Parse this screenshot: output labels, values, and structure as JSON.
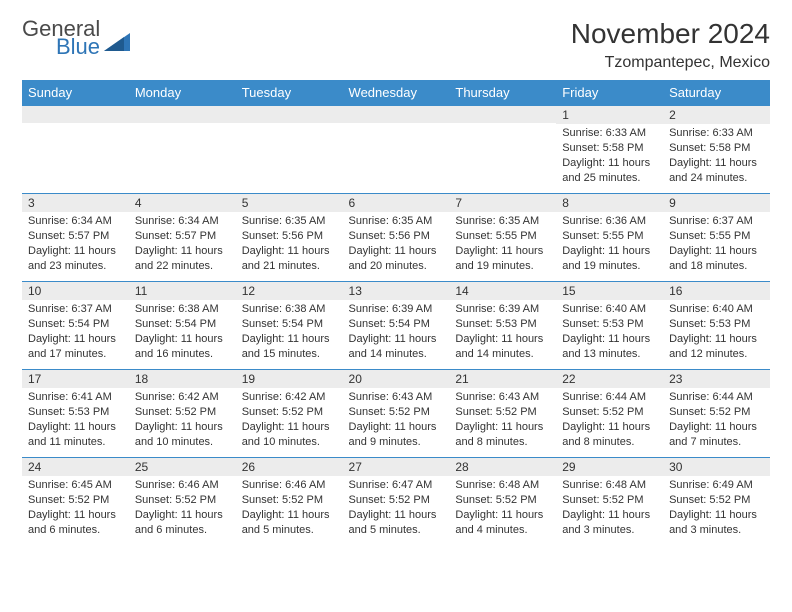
{
  "logo": {
    "word1": "General",
    "word2": "Blue"
  },
  "title": "November 2024",
  "location": "Tzompantepec, Mexico",
  "colors": {
    "header_bg": "#3b8bc9",
    "header_text": "#ffffff",
    "daynum_bg": "#ececec",
    "border": "#3b8bc9",
    "text": "#333333",
    "logo_gray": "#4a4a4a",
    "logo_blue": "#2e75b6"
  },
  "weekdays": [
    "Sunday",
    "Monday",
    "Tuesday",
    "Wednesday",
    "Thursday",
    "Friday",
    "Saturday"
  ],
  "weeks": [
    [
      {
        "blank": true
      },
      {
        "blank": true
      },
      {
        "blank": true
      },
      {
        "blank": true
      },
      {
        "blank": true
      },
      {
        "n": "1",
        "sunrise": "6:33 AM",
        "sunset": "5:58 PM",
        "daylight": "11 hours and 25 minutes."
      },
      {
        "n": "2",
        "sunrise": "6:33 AM",
        "sunset": "5:58 PM",
        "daylight": "11 hours and 24 minutes."
      }
    ],
    [
      {
        "n": "3",
        "sunrise": "6:34 AM",
        "sunset": "5:57 PM",
        "daylight": "11 hours and 23 minutes."
      },
      {
        "n": "4",
        "sunrise": "6:34 AM",
        "sunset": "5:57 PM",
        "daylight": "11 hours and 22 minutes."
      },
      {
        "n": "5",
        "sunrise": "6:35 AM",
        "sunset": "5:56 PM",
        "daylight": "11 hours and 21 minutes."
      },
      {
        "n": "6",
        "sunrise": "6:35 AM",
        "sunset": "5:56 PM",
        "daylight": "11 hours and 20 minutes."
      },
      {
        "n": "7",
        "sunrise": "6:35 AM",
        "sunset": "5:55 PM",
        "daylight": "11 hours and 19 minutes."
      },
      {
        "n": "8",
        "sunrise": "6:36 AM",
        "sunset": "5:55 PM",
        "daylight": "11 hours and 19 minutes."
      },
      {
        "n": "9",
        "sunrise": "6:37 AM",
        "sunset": "5:55 PM",
        "daylight": "11 hours and 18 minutes."
      }
    ],
    [
      {
        "n": "10",
        "sunrise": "6:37 AM",
        "sunset": "5:54 PM",
        "daylight": "11 hours and 17 minutes."
      },
      {
        "n": "11",
        "sunrise": "6:38 AM",
        "sunset": "5:54 PM",
        "daylight": "11 hours and 16 minutes."
      },
      {
        "n": "12",
        "sunrise": "6:38 AM",
        "sunset": "5:54 PM",
        "daylight": "11 hours and 15 minutes."
      },
      {
        "n": "13",
        "sunrise": "6:39 AM",
        "sunset": "5:54 PM",
        "daylight": "11 hours and 14 minutes."
      },
      {
        "n": "14",
        "sunrise": "6:39 AM",
        "sunset": "5:53 PM",
        "daylight": "11 hours and 14 minutes."
      },
      {
        "n": "15",
        "sunrise": "6:40 AM",
        "sunset": "5:53 PM",
        "daylight": "11 hours and 13 minutes."
      },
      {
        "n": "16",
        "sunrise": "6:40 AM",
        "sunset": "5:53 PM",
        "daylight": "11 hours and 12 minutes."
      }
    ],
    [
      {
        "n": "17",
        "sunrise": "6:41 AM",
        "sunset": "5:53 PM",
        "daylight": "11 hours and 11 minutes."
      },
      {
        "n": "18",
        "sunrise": "6:42 AM",
        "sunset": "5:52 PM",
        "daylight": "11 hours and 10 minutes."
      },
      {
        "n": "19",
        "sunrise": "6:42 AM",
        "sunset": "5:52 PM",
        "daylight": "11 hours and 10 minutes."
      },
      {
        "n": "20",
        "sunrise": "6:43 AM",
        "sunset": "5:52 PM",
        "daylight": "11 hours and 9 minutes."
      },
      {
        "n": "21",
        "sunrise": "6:43 AM",
        "sunset": "5:52 PM",
        "daylight": "11 hours and 8 minutes."
      },
      {
        "n": "22",
        "sunrise": "6:44 AM",
        "sunset": "5:52 PM",
        "daylight": "11 hours and 8 minutes."
      },
      {
        "n": "23",
        "sunrise": "6:44 AM",
        "sunset": "5:52 PM",
        "daylight": "11 hours and 7 minutes."
      }
    ],
    [
      {
        "n": "24",
        "sunrise": "6:45 AM",
        "sunset": "5:52 PM",
        "daylight": "11 hours and 6 minutes."
      },
      {
        "n": "25",
        "sunrise": "6:46 AM",
        "sunset": "5:52 PM",
        "daylight": "11 hours and 6 minutes."
      },
      {
        "n": "26",
        "sunrise": "6:46 AM",
        "sunset": "5:52 PM",
        "daylight": "11 hours and 5 minutes."
      },
      {
        "n": "27",
        "sunrise": "6:47 AM",
        "sunset": "5:52 PM",
        "daylight": "11 hours and 5 minutes."
      },
      {
        "n": "28",
        "sunrise": "6:48 AM",
        "sunset": "5:52 PM",
        "daylight": "11 hours and 4 minutes."
      },
      {
        "n": "29",
        "sunrise": "6:48 AM",
        "sunset": "5:52 PM",
        "daylight": "11 hours and 3 minutes."
      },
      {
        "n": "30",
        "sunrise": "6:49 AM",
        "sunset": "5:52 PM",
        "daylight": "11 hours and 3 minutes."
      }
    ]
  ],
  "labels": {
    "sunrise": "Sunrise:",
    "sunset": "Sunset:",
    "daylight": "Daylight:"
  }
}
